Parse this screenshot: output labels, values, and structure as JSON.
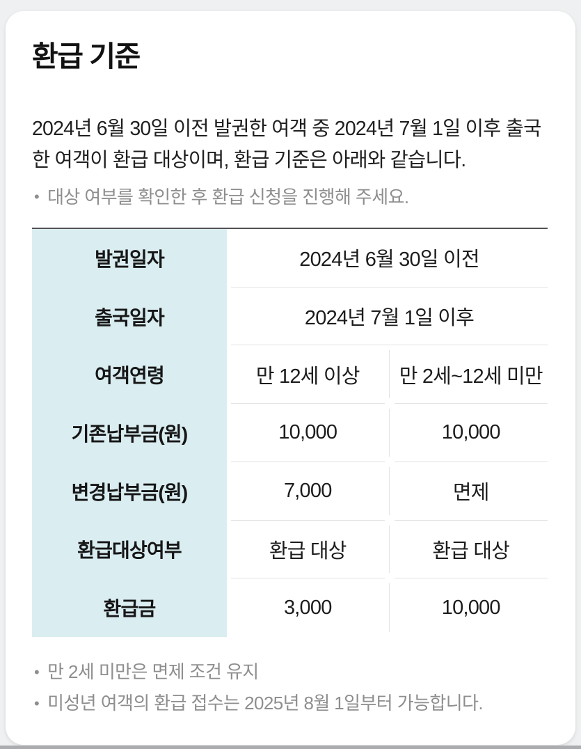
{
  "page": {
    "title": "환급 기준",
    "intro_line1": "2024년 6월 30일 이전 발권한 여객 중 2024년 7월 1일 이후 출국",
    "intro_line2": "한 여객이 환급 대상이며, 환급 기준은 아래와 같습니다.",
    "note_bullet": "•",
    "note": "대상 여부를 확인한 후 환급 신청을 진행해 주세요."
  },
  "table": {
    "rows": [
      {
        "label": "발권일자",
        "span": "2024년 6월 30일 이전"
      },
      {
        "label": "출국일자",
        "span": "2024년 7월 1일 이후"
      },
      {
        "label": "여객연령",
        "col1": "만 12세 이상",
        "col2": "만 2세~12세 미만"
      },
      {
        "label": "기존납부금(원)",
        "col1": "10,000",
        "col2": "10,000"
      },
      {
        "label": "변경납부금(원)",
        "col1": "7,000",
        "col2": "면제"
      },
      {
        "label": "환급대상여부",
        "col1": "환급 대상",
        "col2": "환급 대상"
      },
      {
        "label": "환급금",
        "col1": "3,000",
        "col2": "10,000"
      }
    ]
  },
  "footnotes": {
    "bullet": "•",
    "line1": "만 2세 미만은 면제 조건 유지",
    "line2": "미성년 여객의 환급 접수는 2025년 8월 1일부터 가능합니다."
  },
  "colors": {
    "header_column_bg": "#daedf1",
    "table_top_border": "#525252",
    "divider": "#e2e2e2",
    "muted_text": "#8e8e8e",
    "body_text": "#1f1f1f",
    "page_bg": "#eef0f1"
  }
}
